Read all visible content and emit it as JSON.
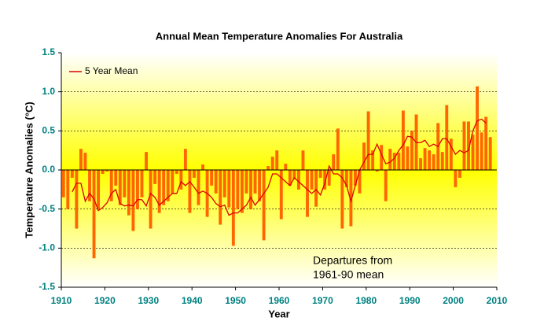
{
  "chart_data": {
    "type": "bar",
    "title": "Annual Mean Temperature Anomalies For Australia",
    "xlabel": "Year",
    "ylabel": "Temperature Anomalies (°C)",
    "annotation": [
      "Departures from",
      "1961-90 mean"
    ],
    "x": [
      1910,
      1911,
      1912,
      1913,
      1914,
      1915,
      1916,
      1917,
      1918,
      1919,
      1920,
      1921,
      1922,
      1923,
      1924,
      1925,
      1926,
      1927,
      1928,
      1929,
      1930,
      1931,
      1932,
      1933,
      1934,
      1935,
      1936,
      1937,
      1938,
      1939,
      1940,
      1941,
      1942,
      1943,
      1944,
      1945,
      1946,
      1947,
      1948,
      1949,
      1950,
      1951,
      1952,
      1953,
      1954,
      1955,
      1956,
      1957,
      1958,
      1959,
      1960,
      1961,
      1962,
      1963,
      1964,
      1965,
      1966,
      1967,
      1968,
      1969,
      1970,
      1971,
      1972,
      1973,
      1974,
      1975,
      1976,
      1977,
      1978,
      1979,
      1980,
      1981,
      1982,
      1983,
      1984,
      1985,
      1986,
      1987,
      1988,
      1989,
      1990,
      1991,
      1992,
      1993,
      1994,
      1995,
      1996,
      1997,
      1998,
      1999,
      2000,
      2001,
      2002,
      2003,
      2004,
      2005,
      2006,
      2007,
      2008
    ],
    "series": [
      {
        "type": "bar",
        "color": "#ff6600",
        "values": [
          -0.35,
          -0.5,
          -0.1,
          -0.75,
          0.27,
          0.22,
          -0.4,
          -1.13,
          -0.5,
          -0.05,
          -0.02,
          -0.4,
          -0.2,
          -0.45,
          -0.35,
          -0.58,
          -0.78,
          -0.5,
          -0.35,
          0.23,
          -0.75,
          -0.18,
          -0.55,
          -0.45,
          -0.4,
          -0.3,
          -0.05,
          -0.25,
          0.27,
          -0.55,
          -0.1,
          -0.45,
          0.07,
          -0.6,
          -0.2,
          -0.3,
          -0.7,
          -0.35,
          -0.48,
          -0.97,
          -0.5,
          -0.55,
          -0.3,
          -0.5,
          -0.3,
          -0.4,
          -0.9,
          0.05,
          0.17,
          0.25,
          -0.63,
          0.08,
          -0.2,
          -0.12,
          -0.25,
          0.25,
          -0.6,
          -0.25,
          -0.47,
          -0.1,
          -0.25,
          -0.2,
          0.2,
          0.53,
          -0.75,
          -0.22,
          -0.72,
          -0.2,
          -0.3,
          0.35,
          0.75,
          0.25,
          -0.02,
          0.32,
          -0.4,
          0.27,
          0.22,
          0.22,
          0.76,
          0.3,
          0.5,
          0.71,
          0.15,
          0.28,
          0.25,
          0.2,
          0.6,
          0.23,
          0.83,
          0.4,
          -0.22,
          -0.1,
          0.62,
          0.62,
          0.45,
          1.07,
          0.48,
          0.68,
          0.42
        ]
      },
      {
        "type": "line",
        "name": "5 Year Mean",
        "color": "#dd0000",
        "values": [
          null,
          null,
          -0.28,
          -0.17,
          -0.17,
          -0.4,
          -0.3,
          -0.37,
          -0.52,
          -0.48,
          -0.42,
          -0.3,
          -0.25,
          -0.43,
          -0.46,
          -0.45,
          -0.46,
          -0.38,
          -0.38,
          -0.46,
          -0.3,
          -0.35,
          -0.45,
          -0.4,
          -0.35,
          -0.3,
          -0.3,
          -0.15,
          -0.2,
          -0.15,
          -0.22,
          -0.3,
          -0.27,
          -0.3,
          -0.35,
          -0.43,
          -0.47,
          -0.45,
          -0.58,
          -0.55,
          -0.55,
          -0.5,
          -0.45,
          -0.35,
          -0.45,
          -0.38,
          -0.3,
          -0.22,
          -0.05,
          -0.05,
          -0.1,
          -0.15,
          -0.2,
          -0.1,
          -0.15,
          -0.2,
          -0.25,
          -0.3,
          -0.25,
          -0.32,
          -0.17,
          0.05,
          -0.05,
          -0.05,
          -0.1,
          -0.2,
          -0.4,
          -0.2,
          0.0,
          0.1,
          0.2,
          0.2,
          0.33,
          0.2,
          0.08,
          0.1,
          0.15,
          0.25,
          0.32,
          0.43,
          0.42,
          0.35,
          0.35,
          0.38,
          0.3,
          0.33,
          0.3,
          0.4,
          0.4,
          0.3,
          0.2,
          0.25,
          0.22,
          0.25,
          0.5,
          0.63,
          0.65,
          0.6,
          null
        ]
      }
    ],
    "xlim": [
      1910,
      2010
    ],
    "xticks": [
      1910,
      1920,
      1930,
      1940,
      1950,
      1960,
      1970,
      1980,
      1990,
      2000,
      2010
    ],
    "ylim": [
      -1.5,
      1.5
    ],
    "yticks": [
      {
        "value": -1.5,
        "label": "-1.5"
      },
      {
        "value": -1,
        "label": "-1.0"
      },
      {
        "value": -0.5,
        "label": "-0.5"
      },
      {
        "value": 0,
        "label": "0.0"
      },
      {
        "value": 0.5,
        "label": "0.5"
      },
      {
        "value": 1,
        "label": "1.0"
      },
      {
        "value": 1.5,
        "label": "1.5"
      }
    ],
    "grid": true,
    "legend": "upper left"
  }
}
